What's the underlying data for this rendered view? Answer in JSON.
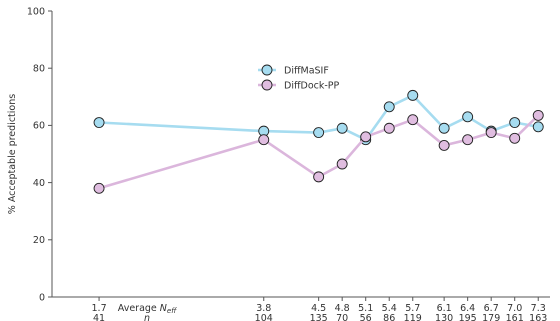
{
  "chart_data": {
    "type": "line",
    "title": "",
    "ylabel": "% Acceptable predictions",
    "ylim": [
      0,
      100
    ],
    "yticks": [
      0,
      20,
      40,
      60,
      80,
      100
    ],
    "grid": false,
    "legend_position": "upper-center",
    "x_row1_label_prefix": "Average ",
    "x_row1_label_main": "N",
    "x_row1_label_sub": "eff",
    "x_row2_label": "n",
    "neff": [
      "1.7",
      "3.8",
      "4.5",
      "4.8",
      "5.1",
      "5.4",
      "5.7",
      "6.1",
      "6.4",
      "6.7",
      "7.0",
      "7.3"
    ],
    "n": [
      "41",
      "104",
      "135",
      "70",
      "56",
      "86",
      "119",
      "130",
      "195",
      "179",
      "161",
      "163"
    ],
    "x": [
      1.7,
      3.8,
      4.5,
      4.8,
      5.1,
      5.4,
      5.7,
      6.1,
      6.4,
      6.7,
      7.0,
      7.3
    ],
    "series": [
      {
        "name": "DiffMaSIF",
        "color": "#a6dcf0",
        "marker_fill": "#a6dcf0",
        "values": [
          61.0,
          58.0,
          57.5,
          59.0,
          55.0,
          66.5,
          70.5,
          59.0,
          63.0,
          58.0,
          61.0,
          59.5
        ]
      },
      {
        "name": "DiffDock-PP",
        "color": "#dbb6dc",
        "marker_fill": "#e0bde0",
        "values": [
          38.0,
          55.0,
          42.0,
          46.5,
          56.0,
          59.0,
          62.0,
          53.0,
          55.0,
          57.5,
          55.5,
          63.5
        ]
      }
    ]
  }
}
